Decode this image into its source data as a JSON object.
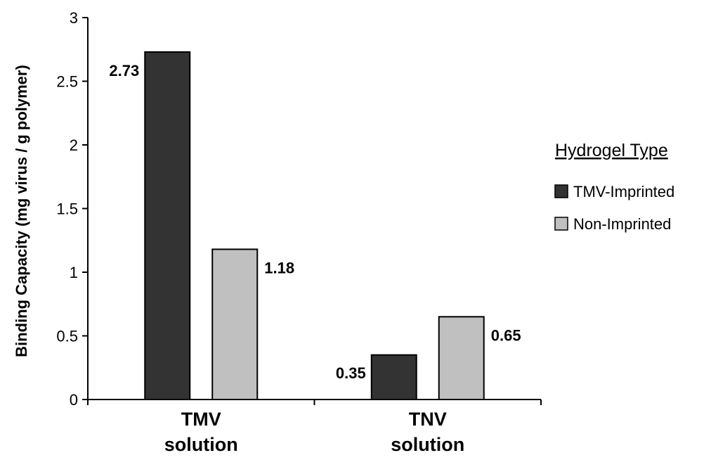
{
  "chart_data": {
    "type": "bar",
    "categories": [
      [
        "TMV",
        "solution"
      ],
      [
        "TNV",
        "solution"
      ]
    ],
    "series": [
      {
        "name": "TMV-Imprinted",
        "values": [
          2.73,
          0.35
        ],
        "color": "#333333"
      },
      {
        "name": "Non-Imprinted",
        "values": [
          1.18,
          0.65
        ],
        "color": "#c0c0c0"
      }
    ],
    "data_labels": [
      [
        "2.73",
        "0.35"
      ],
      [
        "1.18",
        "0.65"
      ]
    ],
    "ylabel": "Binding Capacity (mg virus / g polymer)",
    "xlabel": "",
    "ylim": [
      0,
      3
    ],
    "yticks": [
      0,
      0.5,
      1,
      1.5,
      2,
      2.5,
      3
    ],
    "ytick_labels": [
      "0",
      "0.5",
      "1",
      "1.5",
      "2",
      "2.5",
      "3"
    ],
    "grid": false,
    "legend": {
      "title": "Hydrogel Type",
      "position": "right",
      "entries": [
        "TMV-Imprinted",
        "Non-Imprinted"
      ]
    }
  }
}
